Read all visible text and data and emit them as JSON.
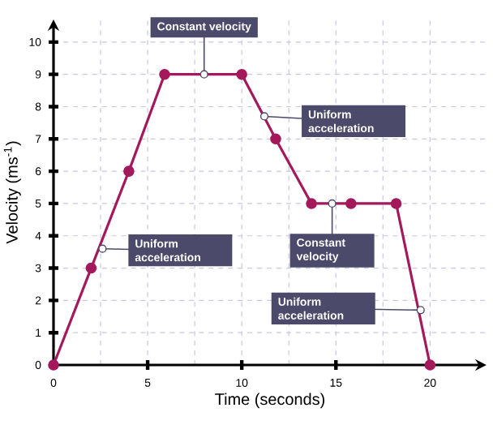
{
  "chart_data": {
    "type": "line",
    "xlabel": "Time (seconds)",
    "ylabel": "Velocity (ms$^{-1}$)",
    "x": [
      0,
      2,
      4,
      5.9,
      10,
      11.8,
      13.7,
      15.8,
      18.2,
      20
    ],
    "series": [
      {
        "color": "#a3195b",
        "values": [
          0,
          3,
          6,
          9,
          9,
          7,
          5,
          5,
          5,
          0
        ]
      }
    ],
    "xlim": [
      0,
      23
    ],
    "ylim": [
      0,
      10.7
    ],
    "xticks": [
      0,
      5,
      10,
      15,
      20
    ],
    "yticks": [
      0,
      1,
      2,
      3,
      4,
      5,
      6,
      7,
      8,
      9,
      10
    ],
    "grid": true,
    "marker": "circle",
    "line_style": "solid",
    "annotations": [
      {
        "text": "Uniform acceleration",
        "x": 2.6,
        "y": 3.6
      },
      {
        "text": "Constant velocity",
        "x": 8,
        "y": 9
      },
      {
        "text": "Uniform acceleration",
        "x": 11.2,
        "y": 7.7
      },
      {
        "text": "Constant velocity",
        "x": 14.8,
        "y": 5
      },
      {
        "text": "Uniform acceleration",
        "x": 19.5,
        "y": 1.7
      }
    ]
  }
}
